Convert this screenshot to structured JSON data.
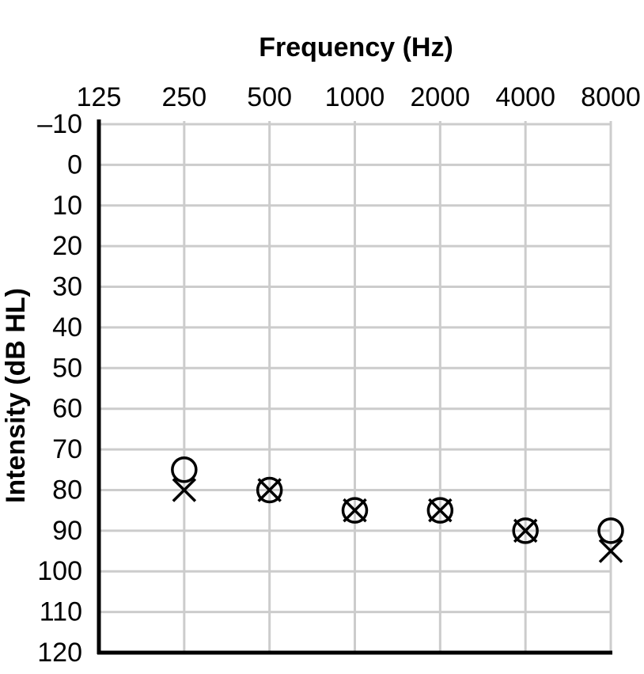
{
  "chart_data": {
    "type": "scatter",
    "x_label": "Frequency (Hz)",
    "y_label": "Intensity (dB HL)",
    "xlog": true,
    "xlim": [
      125,
      8000
    ],
    "xticks": [
      125,
      250,
      500,
      1000,
      2000,
      4000,
      8000
    ],
    "ylim": [
      -10,
      120
    ],
    "y_inverted": true,
    "yticks": [
      {
        "value": -10,
        "label": "–10"
      },
      0,
      10,
      20,
      30,
      40,
      50,
      60,
      70,
      80,
      90,
      100,
      110,
      120
    ],
    "grid": true,
    "x": [
      250,
      500,
      1000,
      2000,
      4000,
      8000
    ],
    "series": [
      {
        "marker": "circle",
        "color": "#000000",
        "values": [
          75,
          80,
          85,
          85,
          90,
          90
        ]
      },
      {
        "marker": "x",
        "color": "#000000",
        "values": [
          80,
          80,
          85,
          85,
          90,
          95
        ]
      }
    ]
  }
}
